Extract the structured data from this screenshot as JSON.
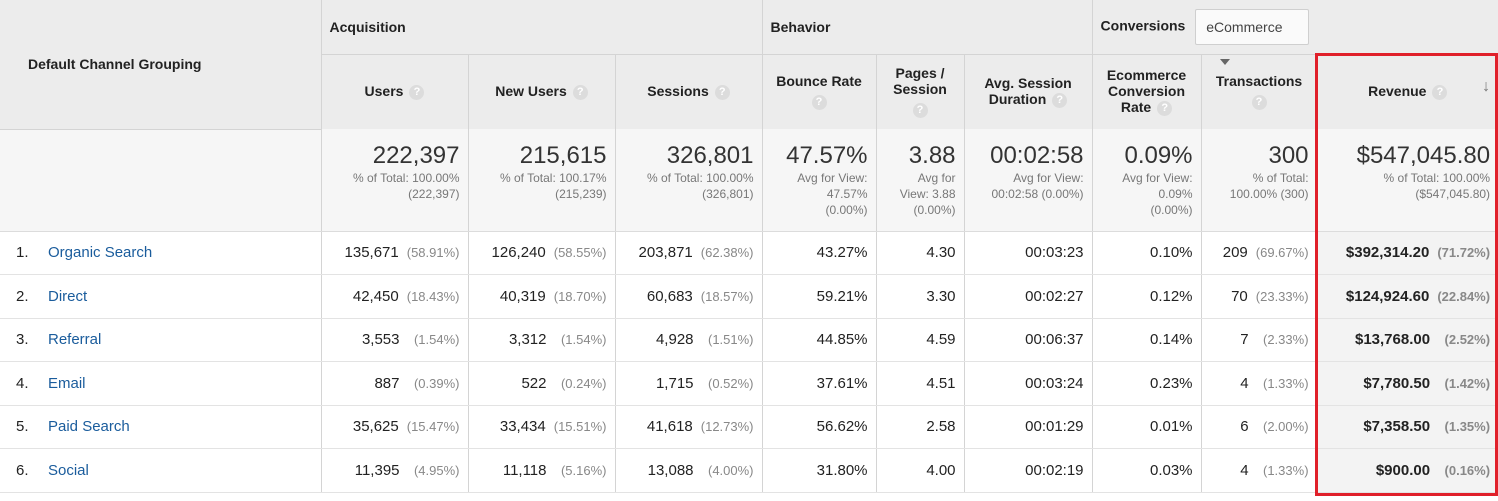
{
  "dimension_header": "Default Channel Grouping",
  "groups": {
    "acquisition": "Acquisition",
    "behavior": "Behavior",
    "conversions": "Conversions",
    "conversions_select": "eCommerce"
  },
  "columns": {
    "users": "Users",
    "new_users": "New Users",
    "sessions": "Sessions",
    "bounce_rate": "Bounce Rate",
    "pages_session_1": "Pages /",
    "pages_session_2": "Session",
    "avg_duration_1": "Avg. Session",
    "avg_duration_2": "Duration",
    "ecr_1": "Ecommerce",
    "ecr_2": "Conversion",
    "ecr_3": "Rate",
    "transactions": "Transactions",
    "revenue": "Revenue"
  },
  "help_glyph": "?",
  "sort_glyph": "↓",
  "totals": {
    "users": {
      "value": "222,397",
      "l1": "% of Total: 100.00%",
      "l2": "(222,397)"
    },
    "new_users": {
      "value": "215,615",
      "l1": "% of Total: 100.17%",
      "l2": "(215,239)"
    },
    "sessions": {
      "value": "326,801",
      "l1": "% of Total: 100.00%",
      "l2": "(326,801)"
    },
    "bounce_rate": {
      "value": "47.57%",
      "l1": "Avg for View:",
      "l2": "47.57%",
      "l3": "(0.00%)"
    },
    "pages": {
      "value": "3.88",
      "l1": "Avg for",
      "l2": "View: 3.88",
      "l3": "(0.00%)"
    },
    "duration": {
      "value": "00:02:58",
      "l1": "Avg for View:",
      "l2": "00:02:58 (0.00%)"
    },
    "ecr": {
      "value": "0.09%",
      "l1": "Avg for View:",
      "l2": "0.09%",
      "l3": "(0.00%)"
    },
    "transactions": {
      "value": "300",
      "l1": "% of Total:",
      "l2": "100.00% (300)"
    },
    "revenue": {
      "value": "$547,045.80",
      "l1": "% of Total: 100.00%",
      "l2": "($547,045.80)"
    }
  },
  "rows": [
    {
      "num": "1.",
      "name": "Organic Search",
      "users": "135,671",
      "users_pct": "(58.91%)",
      "new_users": "126,240",
      "new_users_pct": "(58.55%)",
      "sessions": "203,871",
      "sessions_pct": "(62.38%)",
      "bounce": "43.27%",
      "pages": "4.30",
      "duration": "00:03:23",
      "ecr": "0.10%",
      "transactions": "209",
      "transactions_pct": "(69.67%)",
      "revenue": "$392,314.20",
      "revenue_pct": "(71.72%)"
    },
    {
      "num": "2.",
      "name": "Direct",
      "users": "42,450",
      "users_pct": "(18.43%)",
      "new_users": "40,319",
      "new_users_pct": "(18.70%)",
      "sessions": "60,683",
      "sessions_pct": "(18.57%)",
      "bounce": "59.21%",
      "pages": "3.30",
      "duration": "00:02:27",
      "ecr": "0.12%",
      "transactions": "70",
      "transactions_pct": "(23.33%)",
      "revenue": "$124,924.60",
      "revenue_pct": "(22.84%)"
    },
    {
      "num": "3.",
      "name": "Referral",
      "users": "3,553",
      "users_pct": "(1.54%)",
      "new_users": "3,312",
      "new_users_pct": "(1.54%)",
      "sessions": "4,928",
      "sessions_pct": "(1.51%)",
      "bounce": "44.85%",
      "pages": "4.59",
      "duration": "00:06:37",
      "ecr": "0.14%",
      "transactions": "7",
      "transactions_pct": "(2.33%)",
      "revenue": "$13,768.00",
      "revenue_pct": "(2.52%)"
    },
    {
      "num": "4.",
      "name": "Email",
      "users": "887",
      "users_pct": "(0.39%)",
      "new_users": "522",
      "new_users_pct": "(0.24%)",
      "sessions": "1,715",
      "sessions_pct": "(0.52%)",
      "bounce": "37.61%",
      "pages": "4.51",
      "duration": "00:03:24",
      "ecr": "0.23%",
      "transactions": "4",
      "transactions_pct": "(1.33%)",
      "revenue": "$7,780.50",
      "revenue_pct": "(1.42%)"
    },
    {
      "num": "5.",
      "name": "Paid Search",
      "users": "35,625",
      "users_pct": "(15.47%)",
      "new_users": "33,434",
      "new_users_pct": "(15.51%)",
      "sessions": "41,618",
      "sessions_pct": "(12.73%)",
      "bounce": "56.62%",
      "pages": "2.58",
      "duration": "00:01:29",
      "ecr": "0.01%",
      "transactions": "6",
      "transactions_pct": "(2.00%)",
      "revenue": "$7,358.50",
      "revenue_pct": "(1.35%)"
    },
    {
      "num": "6.",
      "name": "Social",
      "users": "11,395",
      "users_pct": "(4.95%)",
      "new_users": "11,118",
      "new_users_pct": "(5.16%)",
      "sessions": "13,088",
      "sessions_pct": "(4.00%)",
      "bounce": "31.80%",
      "pages": "4.00",
      "duration": "00:02:19",
      "ecr": "0.03%",
      "transactions": "4",
      "transactions_pct": "(1.33%)",
      "revenue": "$900.00",
      "revenue_pct": "(0.16%)"
    }
  ],
  "colors": {
    "highlight": "#e0202a",
    "link": "#1a5c9c",
    "header_bg": "#ececec"
  }
}
